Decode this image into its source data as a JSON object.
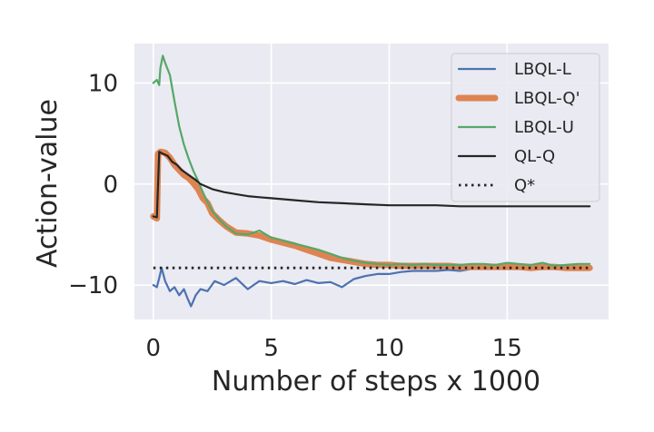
{
  "chart_data": {
    "type": "line",
    "title": "",
    "xlabel": "Number of steps x 1000",
    "ylabel": "Action-value",
    "xlim": [
      -0.8,
      19.3
    ],
    "ylim": [
      -13.4,
      13.9
    ],
    "xticks": [
      0,
      5,
      10,
      15
    ],
    "yticks": [
      10,
      0,
      -10
    ],
    "xtick_labels": [
      "0",
      "5",
      "10",
      "15"
    ],
    "ytick_labels": [
      "10",
      "0",
      "−10"
    ],
    "grid": true,
    "background": "#eaeaf2",
    "legend_position": "top-right",
    "series": [
      {
        "name": "LBQL-L",
        "color": "#4c72b0",
        "style": "solid",
        "x": [
          0,
          0.15,
          0.25,
          0.35,
          0.5,
          0.7,
          0.9,
          1.1,
          1.3,
          1.45,
          1.6,
          1.8,
          2.0,
          2.3,
          2.6,
          3.0,
          3.5,
          4.0,
          4.5,
          5.0,
          5.5,
          6.0,
          6.5,
          7.0,
          7.5,
          8.0,
          8.5,
          9.0,
          9.5,
          10.0,
          10.5,
          11.0,
          11.5,
          12.0,
          12.5,
          13.0,
          13.5,
          14.0,
          14.5,
          15.0,
          15.5,
          16.0,
          16.5,
          17.0,
          17.5,
          18.0,
          18.5
        ],
        "values": [
          -10.0,
          -10.2,
          -9.3,
          -8.3,
          -9.6,
          -10.6,
          -10.2,
          -11.0,
          -10.4,
          -11.3,
          -12.1,
          -11.0,
          -10.4,
          -10.6,
          -9.6,
          -10.0,
          -9.3,
          -10.4,
          -9.6,
          -9.8,
          -9.6,
          -9.9,
          -9.5,
          -9.8,
          -9.7,
          -10.2,
          -9.4,
          -9.1,
          -8.9,
          -8.9,
          -8.7,
          -8.6,
          -8.6,
          -8.6,
          -8.5,
          -8.6,
          -8.4,
          -8.4,
          -8.4,
          -8.4,
          -8.3,
          -8.4,
          -8.2,
          -8.4,
          -8.3,
          -8.4,
          -8.3
        ]
      },
      {
        "name": "LBQL-Q'",
        "color": "#dd8452",
        "style": "thick",
        "x": [
          0,
          0.15,
          0.2,
          0.3,
          0.5,
          0.7,
          0.9,
          1.1,
          1.3,
          1.5,
          1.7,
          1.9,
          2.1,
          2.3,
          2.5,
          2.8,
          3.1,
          3.5,
          4.0,
          4.5,
          5.0,
          5.5,
          6.0,
          6.5,
          7.0,
          7.5,
          8.0,
          8.5,
          9.0,
          9.5,
          10.0,
          10.5,
          11.0,
          11.5,
          12.0,
          12.5,
          13.0,
          13.5,
          14.0,
          14.5,
          15.0,
          15.5,
          16.0,
          16.5,
          17.0,
          17.5,
          18.0,
          18.5
        ],
        "values": [
          -3.2,
          -3.4,
          3.0,
          3.2,
          3.1,
          2.6,
          1.9,
          1.4,
          0.9,
          0.6,
          0.1,
          -0.5,
          -1.4,
          -1.9,
          -2.9,
          -3.6,
          -4.2,
          -4.8,
          -4.9,
          -5.1,
          -5.5,
          -5.8,
          -6.1,
          -6.5,
          -6.9,
          -7.3,
          -7.5,
          -7.7,
          -7.9,
          -8.0,
          -8.0,
          -8.1,
          -8.1,
          -8.1,
          -8.1,
          -8.1,
          -8.2,
          -8.2,
          -8.2,
          -8.2,
          -8.2,
          -8.2,
          -8.3,
          -8.2,
          -8.2,
          -8.3,
          -8.3,
          -8.3
        ]
      },
      {
        "name": "LBQL-U",
        "color": "#55a868",
        "style": "solid",
        "x": [
          0,
          0.15,
          0.25,
          0.3,
          0.4,
          0.5,
          0.7,
          0.9,
          1.1,
          1.3,
          1.5,
          1.7,
          1.9,
          2.1,
          2.3,
          2.5,
          2.8,
          3.1,
          3.5,
          4.0,
          4.5,
          5.0,
          5.5,
          6.0,
          6.5,
          7.0,
          7.5,
          8.0,
          8.5,
          9.0,
          9.5,
          10.0,
          10.5,
          11.0,
          11.5,
          12.0,
          12.5,
          13.0,
          13.5,
          14.0,
          14.5,
          15.0,
          15.5,
          16.0,
          16.5,
          17.0,
          17.5,
          18.0,
          18.5
        ],
        "values": [
          10.0,
          10.3,
          9.8,
          11.5,
          12.7,
          12.0,
          10.8,
          8.2,
          5.7,
          3.9,
          2.5,
          1.3,
          0.3,
          -0.8,
          -1.8,
          -2.7,
          -3.5,
          -4.2,
          -4.9,
          -5.0,
          -4.6,
          -5.3,
          -5.6,
          -5.9,
          -6.2,
          -6.5,
          -6.9,
          -7.3,
          -7.6,
          -7.8,
          -7.9,
          -8.0,
          -7.9,
          -8.0,
          -7.9,
          -8.0,
          -8.0,
          -8.0,
          -7.9,
          -7.9,
          -8.0,
          -7.8,
          -7.9,
          -8.0,
          -7.8,
          -8.1,
          -8.0,
          -7.9,
          -7.9
        ]
      },
      {
        "name": "QL-Q",
        "color": "#262626",
        "style": "solid",
        "x": [
          0,
          0.15,
          0.25,
          0.4,
          0.6,
          0.8,
          1.0,
          1.2,
          1.5,
          1.8,
          2.0,
          2.5,
          3.0,
          3.5,
          4.0,
          4.5,
          5.0,
          6.0,
          7.0,
          8.0,
          9.0,
          10.0,
          11.0,
          12.0,
          13.0,
          14.0,
          15.0,
          16.0,
          17.0,
          18.5
        ],
        "values": [
          -3.2,
          -3.3,
          3.2,
          3.0,
          2.8,
          2.2,
          1.9,
          1.4,
          0.9,
          0.4,
          0.0,
          -0.5,
          -0.8,
          -1.0,
          -1.2,
          -1.3,
          -1.4,
          -1.6,
          -1.8,
          -1.9,
          -2.0,
          -2.1,
          -2.1,
          -2.1,
          -2.2,
          -2.2,
          -2.2,
          -2.2,
          -2.2,
          -2.2
        ]
      },
      {
        "name": "Q*",
        "color": "#262626",
        "style": "dotted",
        "x": [
          0,
          18.5
        ],
        "values": [
          -8.3,
          -8.3
        ]
      }
    ]
  }
}
